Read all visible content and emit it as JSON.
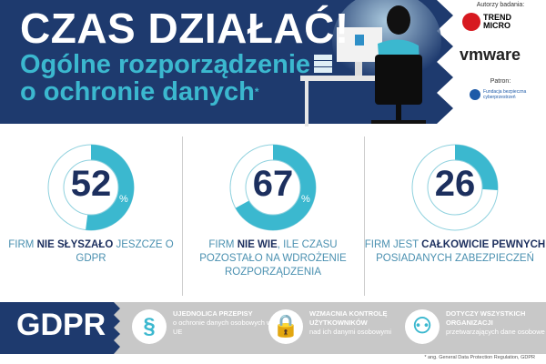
{
  "header": {
    "title": "CZAS DZIAŁAĆ!",
    "subtitle": "Ogólne rozporządzenie o ochronie danych",
    "subtitle_mark": "*"
  },
  "sponsors": {
    "authors_label": "Autorzy badania:",
    "authors": [
      "TREND MICRO",
      "vmware"
    ],
    "patron_label": "Patron:",
    "patron": "Fundacja bezpieczna cyberprzestrzeń"
  },
  "colors": {
    "navy": "#1e3a6e",
    "accent": "#3bb8cf",
    "gray": "#c8c8c8"
  },
  "stats": [
    {
      "value": 52,
      "unit": "%",
      "text_pre": "FIRM ",
      "text_bold": "NIE SŁYSZAŁO",
      "text_post": " JESZCZE O GDPR"
    },
    {
      "value": 67,
      "unit": "%",
      "text_pre": "FIRM ",
      "text_bold": "NIE WIE",
      "text_post": ", ILE CZASU POZOSTAŁO NA WDROŻENIE ROZPORZĄDZENIA"
    },
    {
      "value": 26,
      "unit": "%",
      "text_pre": "FIRM JEST ",
      "text_bold": "CAŁKOWICIE PEWNYCH",
      "text_post": " POSIADANYCH ZABEZPIECZEŃ"
    }
  ],
  "footer": {
    "label": "GDPR",
    "features": [
      {
        "icon": "paragraph-icon",
        "title": "UJEDNOLICA PRZEPISY",
        "text": "o ochronie danych osobowych w UE"
      },
      {
        "icon": "lock-icon",
        "title": "WZMACNIA KONTROLĘ UŻYTKOWNIKÓW",
        "text": "nad ich danymi osobowymi"
      },
      {
        "icon": "organization-icon",
        "title": "DOTYCZY WSZYSTKICH ORGANIZACJI",
        "text": "przetwarzających dane osobowe"
      }
    ],
    "footnote": "* ang. General Data Protection Regulation, GDPR"
  }
}
